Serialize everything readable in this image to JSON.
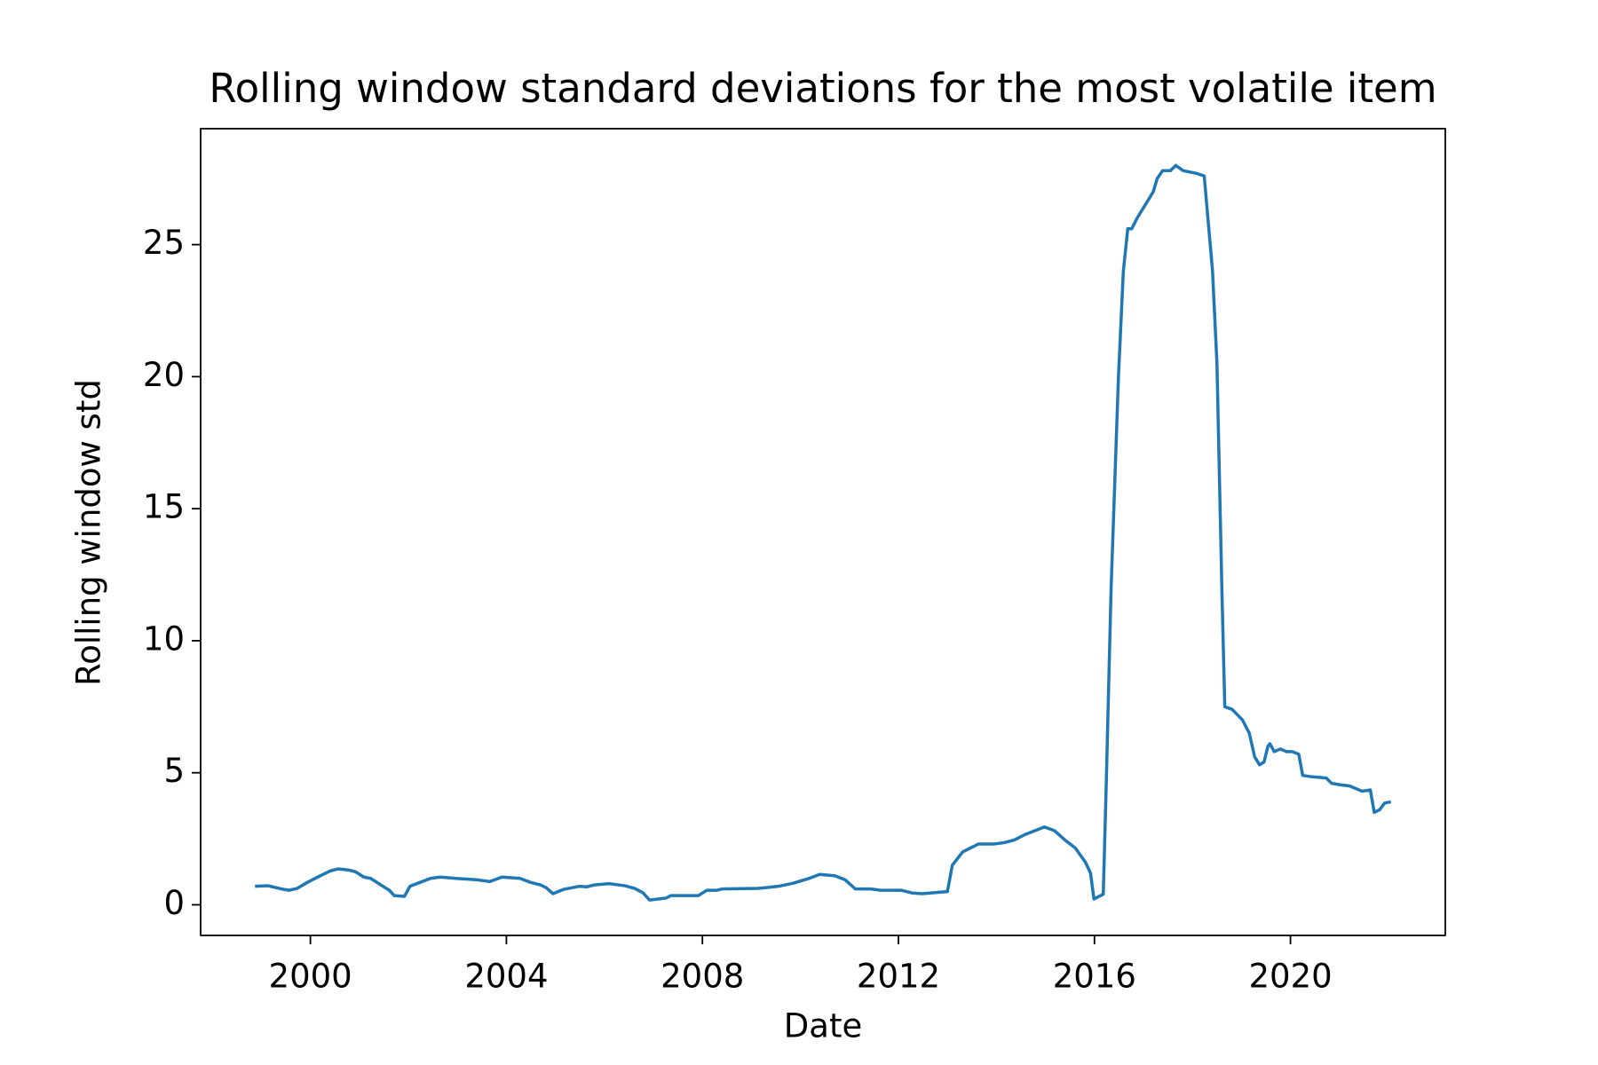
{
  "chart_data": {
    "type": "line",
    "title": "Rolling window standard deviations for the most volatile item",
    "xlabel": "Date",
    "ylabel": "Rolling window std",
    "xlim": [
      1997.76,
      2023.16
    ],
    "xticks": [
      2000,
      2004,
      2008,
      2012,
      2016,
      2020
    ],
    "ylim": [
      -1.16,
      29.39
    ],
    "yticks": [
      0,
      5,
      10,
      15,
      20,
      25
    ],
    "grid": false,
    "series": [
      {
        "color": "#1f77b4",
        "x": [
          1998.87,
          1999.14,
          1999.41,
          1999.56,
          1999.73,
          1999.94,
          2000.15,
          2000.4,
          2000.56,
          2000.77,
          2000.92,
          2001.09,
          2001.23,
          2001.44,
          2001.61,
          2001.71,
          2001.92,
          2002.03,
          2002.24,
          2002.45,
          2002.65,
          2002.97,
          2003.39,
          2003.66,
          2003.91,
          2004.28,
          2004.49,
          2004.7,
          2004.81,
          2004.95,
          2005.16,
          2005.48,
          2005.64,
          2005.79,
          2006.1,
          2006.42,
          2006.62,
          2006.79,
          2006.92,
          2007.25,
          2007.36,
          2007.92,
          2008.09,
          2008.3,
          2008.4,
          2009.13,
          2009.3,
          2009.55,
          2009.86,
          2010.18,
          2010.39,
          2010.7,
          2010.91,
          2011.12,
          2011.43,
          2011.64,
          2012.06,
          2012.27,
          2012.48,
          2013.0,
          2013.1,
          2013.31,
          2013.63,
          2013.94,
          2014.15,
          2014.36,
          2014.57,
          2014.98,
          2015.19,
          2015.4,
          2015.61,
          2015.82,
          2015.92,
          2015.99,
          2016.18,
          2016.24,
          2016.34,
          2016.49,
          2016.59,
          2016.68,
          2016.76,
          2016.87,
          2017.2,
          2017.28,
          2017.39,
          2017.55,
          2017.66,
          2017.81,
          2018.08,
          2018.24,
          2018.41,
          2018.5,
          2018.6,
          2018.66,
          2018.81,
          2019.02,
          2019.16,
          2019.27,
          2019.37,
          2019.46,
          2019.54,
          2019.58,
          2019.67,
          2019.79,
          2019.92,
          2020.04,
          2020.17,
          2020.25,
          2020.42,
          2020.73,
          2020.84,
          2021.0,
          2021.21,
          2021.46,
          2021.63,
          2021.71,
          2021.82,
          2021.92,
          2022.05
        ],
        "values": [
          0.7,
          0.72,
          0.6,
          0.55,
          0.62,
          0.85,
          1.05,
          1.28,
          1.36,
          1.32,
          1.25,
          1.05,
          1.0,
          0.75,
          0.55,
          0.35,
          0.32,
          0.7,
          0.85,
          1.0,
          1.05,
          1.0,
          0.95,
          0.88,
          1.05,
          1.0,
          0.85,
          0.75,
          0.65,
          0.42,
          0.58,
          0.7,
          0.68,
          0.75,
          0.8,
          0.72,
          0.62,
          0.45,
          0.18,
          0.25,
          0.35,
          0.35,
          0.55,
          0.55,
          0.6,
          0.62,
          0.65,
          0.7,
          0.82,
          1.0,
          1.15,
          1.1,
          0.95,
          0.6,
          0.6,
          0.55,
          0.55,
          0.45,
          0.42,
          0.5,
          1.5,
          2.0,
          2.3,
          2.3,
          2.35,
          2.45,
          2.65,
          2.95,
          2.8,
          2.45,
          2.15,
          1.6,
          1.2,
          0.22,
          0.4,
          4.5,
          12.0,
          20.0,
          24.0,
          25.6,
          25.6,
          26.0,
          27.0,
          27.5,
          27.8,
          27.8,
          28.0,
          27.8,
          27.7,
          27.6,
          24.0,
          20.5,
          12.0,
          7.5,
          7.4,
          7.0,
          6.5,
          5.6,
          5.3,
          5.4,
          6.0,
          6.1,
          5.8,
          5.9,
          5.8,
          5.8,
          5.7,
          4.9,
          4.85,
          4.8,
          4.6,
          4.55,
          4.5,
          4.3,
          4.35,
          3.5,
          3.6,
          3.85,
          3.9
        ]
      }
    ]
  }
}
